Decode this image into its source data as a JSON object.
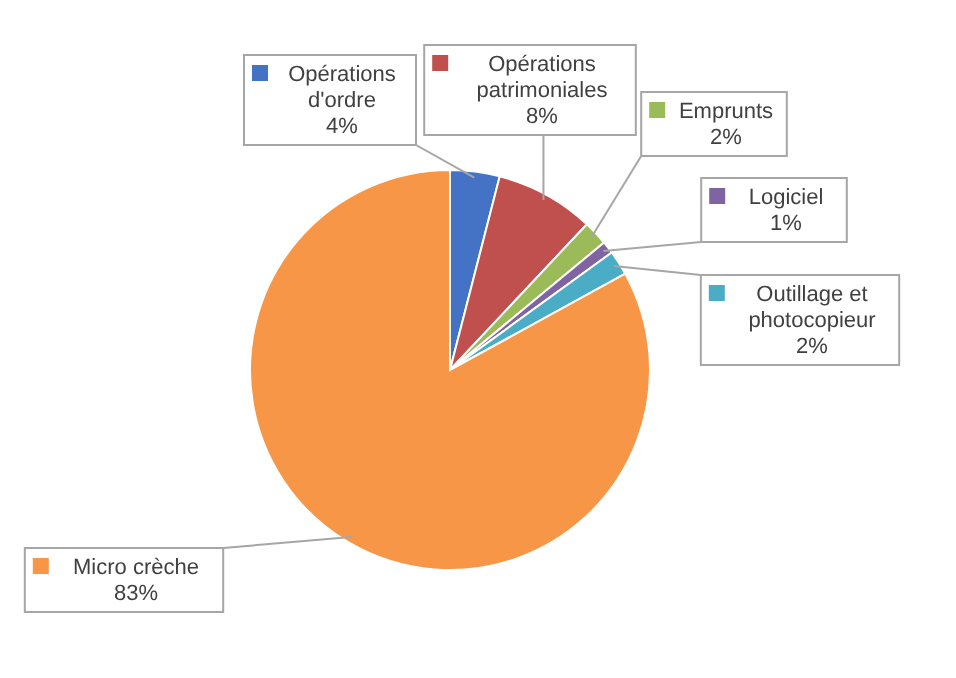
{
  "chart_data": {
    "type": "pie",
    "categories": [
      "Opérations d'ordre",
      "Opérations patrimoniales",
      "Emprunts",
      "Logiciel",
      "Outillage et photocopieur",
      "Micro crèche"
    ],
    "values": [
      4,
      8,
      2,
      1,
      2,
      83
    ],
    "value_labels": [
      "4%",
      "8%",
      "2%",
      "1%",
      "2%",
      "83%"
    ],
    "colors": [
      "#4472c4",
      "#c0504d",
      "#9bbb59",
      "#8064a2",
      "#4bacc6",
      "#f79646"
    ],
    "legend": "top right"
  }
}
